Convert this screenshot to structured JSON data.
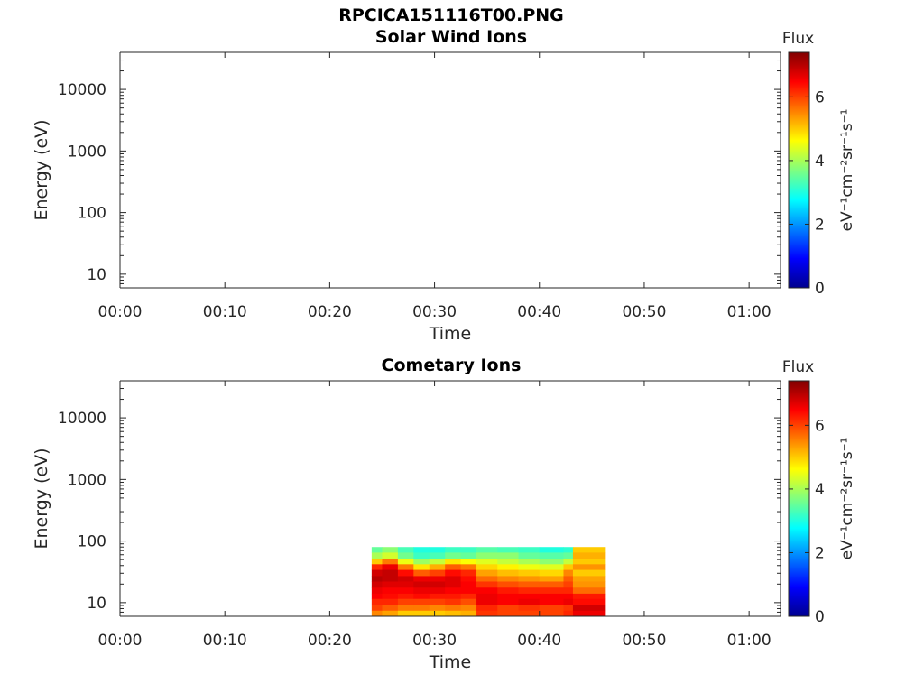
{
  "figure_title": "RPCICA151116T00.PNG",
  "chart_data": [
    {
      "type": "heatmap",
      "title": "Solar Wind Ions",
      "xlabel": "Time",
      "ylabel": "Energy (eV)",
      "x_ticks": [
        "00:00",
        "00:10",
        "00:20",
        "00:30",
        "00:40",
        "00:50",
        "01:00"
      ],
      "x_range_minutes": [
        0,
        63
      ],
      "y_scale": "log",
      "y_ticks": [
        "10",
        "100",
        "1000",
        "10000"
      ],
      "y_range": [
        6,
        40000
      ],
      "colorbar": {
        "title": "Flux",
        "label": "eV⁻¹cm⁻²sr⁻¹s⁻¹",
        "ticks": [
          "0",
          "2",
          "4",
          "6"
        ],
        "range": [
          0,
          7.4
        ]
      },
      "data": []
    },
    {
      "type": "heatmap",
      "title": "Cometary Ions",
      "xlabel": "Time",
      "ylabel": "Energy (eV)",
      "x_ticks": [
        "00:00",
        "00:10",
        "00:20",
        "00:30",
        "00:40",
        "00:50",
        "01:00"
      ],
      "x_range_minutes": [
        0,
        63
      ],
      "y_scale": "log",
      "y_ticks": [
        "10",
        "100",
        "1000",
        "10000"
      ],
      "y_range": [
        6,
        40000
      ],
      "colorbar": {
        "title": "Flux",
        "label": "eV⁻¹cm⁻²sr⁻¹s⁻¹",
        "ticks": [
          "0",
          "2",
          "4",
          "6"
        ],
        "range": [
          0,
          7.4
        ]
      },
      "data_extent": {
        "time_minutes": [
          24,
          46.3
        ],
        "energy_eV": [
          6,
          80
        ]
      },
      "energy_bins_eV": [
        80,
        65,
        52,
        42,
        34,
        27,
        22,
        17.5,
        14,
        11.5,
        9.2,
        7.4,
        6
      ],
      "data": [
        {
          "t": [
            24.0,
            25.0
          ],
          "flux": [
            3.5,
            4.0,
            5.0,
            6.2,
            6.8,
            7.0,
            6.8,
            6.6,
            6.5,
            6.2,
            6.0,
            5.5
          ]
        },
        {
          "t": [
            25.0,
            26.5
          ],
          "flux": [
            3.8,
            4.3,
            5.6,
            6.6,
            6.9,
            6.9,
            6.7,
            6.5,
            6.4,
            6.2,
            5.8,
            5.3
          ]
        },
        {
          "t": [
            26.5,
            28.0
          ],
          "flux": [
            3.3,
            3.6,
            4.5,
            5.6,
            6.4,
            6.8,
            6.7,
            6.5,
            6.3,
            6.0,
            5.6,
            5.0
          ]
        },
        {
          "t": [
            28.0,
            29.5
          ],
          "flux": [
            3.0,
            3.2,
            3.9,
            4.8,
            5.8,
            6.6,
            6.8,
            6.6,
            6.4,
            6.0,
            5.6,
            5.0
          ]
        },
        {
          "t": [
            29.5,
            31.0
          ],
          "flux": [
            3.0,
            3.3,
            4.2,
            5.2,
            6.0,
            6.6,
            6.8,
            6.6,
            6.3,
            6.0,
            5.5,
            5.0
          ]
        },
        {
          "t": [
            31.0,
            32.5
          ],
          "flux": [
            3.2,
            3.6,
            4.8,
            5.8,
            6.4,
            6.7,
            6.7,
            6.5,
            6.3,
            6.1,
            5.6,
            5.1
          ]
        },
        {
          "t": [
            32.5,
            34.0
          ],
          "flux": [
            3.2,
            3.5,
            4.6,
            5.6,
            6.2,
            6.4,
            6.5,
            6.5,
            6.2,
            5.9,
            5.5,
            5.2
          ]
        },
        {
          "t": [
            34.0,
            36.0
          ],
          "flux": [
            3.4,
            3.8,
            4.4,
            4.9,
            5.3,
            5.7,
            6.1,
            6.5,
            6.6,
            6.6,
            6.2,
            6.1
          ]
        },
        {
          "t": [
            36.0,
            38.0
          ],
          "flux": [
            3.3,
            3.8,
            4.2,
            4.7,
            5.1,
            5.5,
            5.9,
            6.3,
            6.5,
            6.5,
            6.0,
            6.0
          ]
        },
        {
          "t": [
            38.0,
            40.0
          ],
          "flux": [
            3.2,
            3.5,
            4.0,
            4.5,
            5.0,
            5.4,
            5.8,
            6.2,
            6.5,
            6.6,
            6.1,
            6.0
          ]
        },
        {
          "t": [
            40.0,
            42.3
          ],
          "flux": [
            3.0,
            3.4,
            3.8,
            4.4,
            4.9,
            5.3,
            5.8,
            6.2,
            6.5,
            6.5,
            6.0,
            6.0
          ]
        },
        {
          "t": [
            42.3,
            43.2
          ],
          "flux": [
            3.1,
            3.5,
            4.2,
            5.0,
            5.5,
            5.8,
            6.0,
            6.2,
            6.5,
            6.6,
            6.1,
            6.2
          ]
        },
        {
          "t": [
            43.2,
            46.3
          ],
          "flux": [
            5.0,
            5.2,
            5.0,
            5.4,
            5.0,
            5.3,
            5.4,
            5.7,
            6.3,
            6.4,
            6.8,
            6.6
          ]
        }
      ]
    }
  ]
}
